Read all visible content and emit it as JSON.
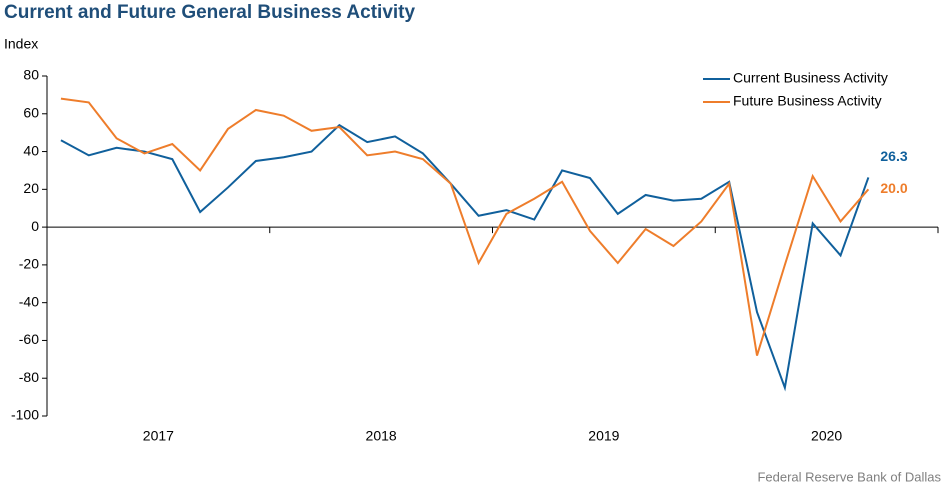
{
  "chart_data": {
    "type": "line",
    "title": "Current and Future General Business Activity",
    "y_label": "Index",
    "source": "Federal Reserve Bank of Dallas",
    "x_labels": [
      "2017",
      "2018",
      "2019",
      "2020"
    ],
    "ylim": [
      -100,
      80
    ],
    "yticks": [
      -100,
      -80,
      -60,
      -40,
      -20,
      0,
      20,
      40,
      60,
      80
    ],
    "legend": "top-right",
    "series": [
      {
        "name": "Current Business Activity",
        "color": "#10609c",
        "values": [
          46,
          38,
          42,
          40,
          36,
          8,
          21,
          35,
          37,
          40,
          54,
          45,
          48,
          39,
          23,
          6,
          9,
          4,
          30,
          26,
          7,
          17,
          14,
          15,
          24,
          -45,
          -85,
          2,
          -15,
          26.3
        ],
        "value_labels": [
          null,
          null,
          null,
          null,
          null,
          null,
          null,
          null,
          null,
          null,
          null,
          null,
          null,
          null,
          null,
          null,
          null,
          null,
          null,
          null,
          null,
          null,
          null,
          null,
          null,
          null,
          null,
          null,
          null,
          "26.3"
        ]
      },
      {
        "name": "Future Business Activity",
        "color": "#ee7d2b",
        "values": [
          68,
          66,
          47,
          39,
          44,
          30,
          52,
          62,
          59,
          51,
          53,
          38,
          40,
          36,
          23,
          -19,
          7,
          15,
          24,
          -2,
          -19,
          -1,
          -10,
          3,
          23,
          -68,
          -20,
          27,
          3,
          20
        ],
        "value_labels": [
          null,
          null,
          null,
          null,
          null,
          null,
          null,
          null,
          null,
          null,
          null,
          null,
          null,
          null,
          null,
          null,
          null,
          null,
          null,
          null,
          null,
          null,
          null,
          null,
          null,
          null,
          null,
          null,
          null,
          "20.0"
        ]
      }
    ]
  }
}
